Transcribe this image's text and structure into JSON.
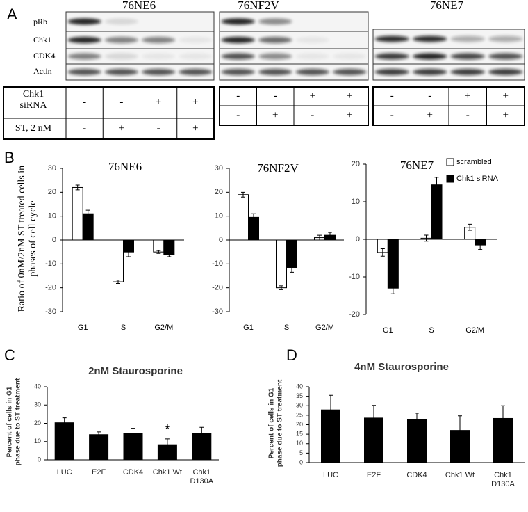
{
  "panel_labels": [
    "A",
    "B",
    "C",
    "D"
  ],
  "blot": {
    "cell_lines": [
      "76NE6",
      "76NF2V",
      "76NE7"
    ],
    "row_labels": [
      "pRb",
      "Chk1",
      "CDK4",
      "Actin"
    ]
  },
  "conditions": {
    "row_labels": [
      "Chk1 siRNA",
      "ST, 2 nM"
    ],
    "groups": [
      [
        [
          "-",
          "-",
          "+",
          "+"
        ],
        [
          "-",
          "+",
          "-",
          "+"
        ]
      ],
      [
        [
          "-",
          "-",
          "+",
          "+"
        ],
        [
          "-",
          "+",
          "-",
          "+"
        ]
      ],
      [
        [
          "-",
          "-",
          "+",
          "+"
        ],
        [
          "-",
          "+",
          "-",
          "+"
        ]
      ]
    ]
  },
  "chart_data": [
    {
      "type": "bar",
      "title": "76NE6",
      "ylabel": "Ratio of 0nM/2nM ST treated cells in phases of cell cycle",
      "categories": [
        "G1",
        "S",
        "G2/M"
      ],
      "series": [
        {
          "name": "scrambled",
          "color": "#ffffff",
          "values": [
            22,
            -17.5,
            -5
          ],
          "errors": [
            1,
            0.7,
            0.6
          ]
        },
        {
          "name": "Chk1 siRNA",
          "color": "#000000",
          "values": [
            11,
            -5,
            -6
          ],
          "errors": [
            1.5,
            2,
            1
          ]
        }
      ],
      "ylim": [
        -30,
        30
      ],
      "yticks": [
        -30,
        -20,
        -10,
        0,
        10,
        20,
        30
      ]
    },
    {
      "type": "bar",
      "title": "76NF2V",
      "categories": [
        "G1",
        "S",
        "G2/M"
      ],
      "series": [
        {
          "name": "scrambled",
          "color": "#ffffff",
          "values": [
            19,
            -20,
            1
          ],
          "errors": [
            1,
            0.8,
            1
          ]
        },
        {
          "name": "Chk1 siRNA",
          "color": "#000000",
          "values": [
            9.5,
            -11.5,
            2
          ],
          "errors": [
            1.5,
            2,
            1.2
          ]
        }
      ],
      "ylim": [
        -30,
        30
      ],
      "yticks": [
        -30,
        -20,
        -10,
        0,
        10,
        20,
        30
      ]
    },
    {
      "type": "bar",
      "title": "76NE7",
      "categories": [
        "G1",
        "S",
        "G2/M"
      ],
      "series": [
        {
          "name": "scrambled",
          "color": "#ffffff",
          "values": [
            -3.5,
            0.3,
            3.2
          ],
          "errors": [
            1,
            0.8,
            0.8
          ]
        },
        {
          "name": "Chk1 siRNA",
          "color": "#000000",
          "values": [
            -13,
            14.5,
            -1.5
          ],
          "errors": [
            1.5,
            2,
            1.2
          ]
        }
      ],
      "ylim": [
        -20,
        20
      ],
      "yticks": [
        -20,
        -10,
        0,
        10,
        20
      ],
      "legend": "top-right"
    },
    {
      "type": "bar",
      "title": "2nM Staurosporine",
      "ylabel": "Percent of cells in G1 phase due to ST treatment",
      "categories": [
        "LUC",
        "E2F",
        "CDK4",
        "Chk1 Wt",
        "Chk1 D130A"
      ],
      "values": [
        20.5,
        14,
        14.8,
        8.5,
        14.8
      ],
      "errors": [
        2.5,
        1.3,
        2.5,
        3,
        3
      ],
      "color": "#000000",
      "annotation": "*",
      "ylim": [
        0,
        40
      ],
      "yticks": [
        0,
        10,
        20,
        30,
        40
      ]
    },
    {
      "type": "bar",
      "title": "4nM Staurosporine",
      "ylabel": "Percent of cells in G1 phase due to ST treatment",
      "categories": [
        "LUC",
        "E2F",
        "CDK4",
        "Chk1 Wt",
        "Chk1 D130A"
      ],
      "values": [
        28,
        23.7,
        22.8,
        17.2,
        23.5
      ],
      "errors": [
        7.5,
        6.5,
        3.3,
        7.5,
        6.5
      ],
      "color": "#000000",
      "ylim": [
        0,
        40
      ],
      "yticks": [
        0,
        5,
        10,
        15,
        20,
        25,
        30,
        35,
        40
      ]
    }
  ]
}
